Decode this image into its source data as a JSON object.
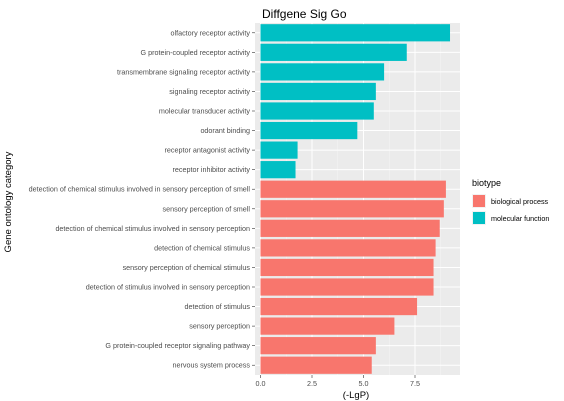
{
  "chart_data": {
    "type": "bar",
    "orientation": "horizontal",
    "title": "Diffgene Sig Go",
    "xlabel": "(-LgP)",
    "ylabel": "Gene ontology category",
    "xlim": [
      0,
      9.55
    ],
    "xticks": [
      "0.0",
      "2.5",
      "5.0",
      "7.5"
    ],
    "xtick_values": [
      0,
      2.5,
      5.0,
      7.5
    ],
    "grid": true,
    "legend": {
      "title": "biotype",
      "position": "right",
      "entries": [
        {
          "name": "biological process",
          "color": "#F8766D"
        },
        {
          "name": "molecular function",
          "color": "#00BFC4"
        }
      ]
    },
    "categories": [
      "olfactory receptor activity",
      "G protein-coupled receptor activity",
      "transmembrane signaling receptor activity",
      "signaling receptor activity",
      "molecular transducer activity",
      "odorant binding",
      "receptor antagonist activity",
      "receptor inhibitor activity",
      "detection of chemical stimulus involved in sensory perception of smell",
      "sensory perception of smell",
      "detection of chemical stimulus involved in sensory perception",
      "detection of chemical stimulus",
      "sensory perception of chemical stimulus",
      "detection of stimulus involved in sensory perception",
      "detection of stimulus",
      "sensory perception",
      "G protein-coupled receptor signaling pathway",
      "nervous system process"
    ],
    "values": [
      9.2,
      7.1,
      6.0,
      5.6,
      5.5,
      4.7,
      1.8,
      1.7,
      9.0,
      8.9,
      8.7,
      8.5,
      8.4,
      8.4,
      7.6,
      6.5,
      5.6,
      5.4
    ],
    "biotypes": [
      "molecular function",
      "molecular function",
      "molecular function",
      "molecular function",
      "molecular function",
      "molecular function",
      "molecular function",
      "molecular function",
      "biological process",
      "biological process",
      "biological process",
      "biological process",
      "biological process",
      "biological process",
      "biological process",
      "biological process",
      "biological process",
      "biological process"
    ]
  },
  "colors": {
    "panel_background": "#EBEBEB",
    "grid_major": "#FFFFFF",
    "grid_minor": "#F4F4F4",
    "tick_text": "#4D4D4D"
  }
}
